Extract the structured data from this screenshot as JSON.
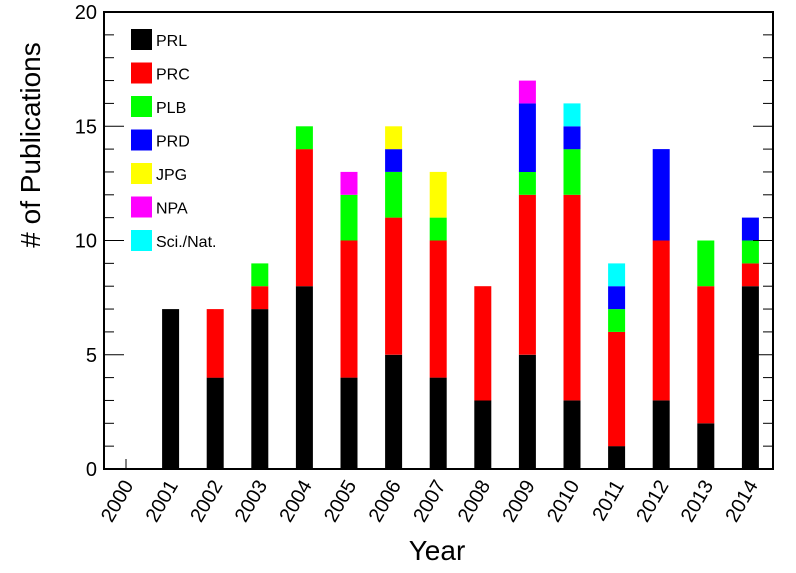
{
  "chart_data": {
    "type": "bar",
    "stacked": true,
    "xlabel": "Year",
    "ylabel": "# of Publications",
    "ylim": [
      0,
      20
    ],
    "yticks": [
      0,
      5,
      10,
      15,
      20
    ],
    "categories": [
      "2000",
      "2001",
      "2002",
      "2003",
      "2004",
      "2005",
      "2006",
      "2007",
      "2008",
      "2009",
      "2010",
      "2011",
      "2012",
      "2013",
      "2014"
    ],
    "legend_position": "top-left",
    "series": [
      {
        "name": "PRL",
        "color": "#000000",
        "values": [
          0,
          7,
          4,
          7,
          8,
          4,
          5,
          4,
          3,
          5,
          3,
          1,
          3,
          2,
          8
        ]
      },
      {
        "name": "PRC",
        "color": "#ff0000",
        "values": [
          0,
          0,
          3,
          1,
          6,
          6,
          6,
          6,
          5,
          7,
          9,
          5,
          7,
          6,
          1
        ]
      },
      {
        "name": "PLB",
        "color": "#00ff00",
        "values": [
          0,
          0,
          0,
          1,
          1,
          2,
          2,
          1,
          0,
          1,
          2,
          1,
          0,
          2,
          1
        ]
      },
      {
        "name": "PRD",
        "color": "#0000ff",
        "values": [
          0,
          0,
          0,
          0,
          0,
          0,
          1,
          0,
          0,
          3,
          1,
          1,
          4,
          0,
          1
        ]
      },
      {
        "name": "JPG",
        "color": "#ffff00",
        "values": [
          0,
          0,
          0,
          0,
          0,
          0,
          1,
          2,
          0,
          0,
          0,
          0,
          0,
          0,
          0
        ]
      },
      {
        "name": "NPA",
        "color": "#ff00ff",
        "values": [
          0,
          0,
          0,
          0,
          0,
          1,
          0,
          0,
          0,
          1,
          0,
          0,
          0,
          0,
          0
        ]
      },
      {
        "name": "Sci./Nat.",
        "color": "#00ffff",
        "values": [
          0,
          0,
          0,
          0,
          0,
          0,
          0,
          0,
          0,
          0,
          1,
          1,
          0,
          0,
          0
        ]
      }
    ]
  }
}
